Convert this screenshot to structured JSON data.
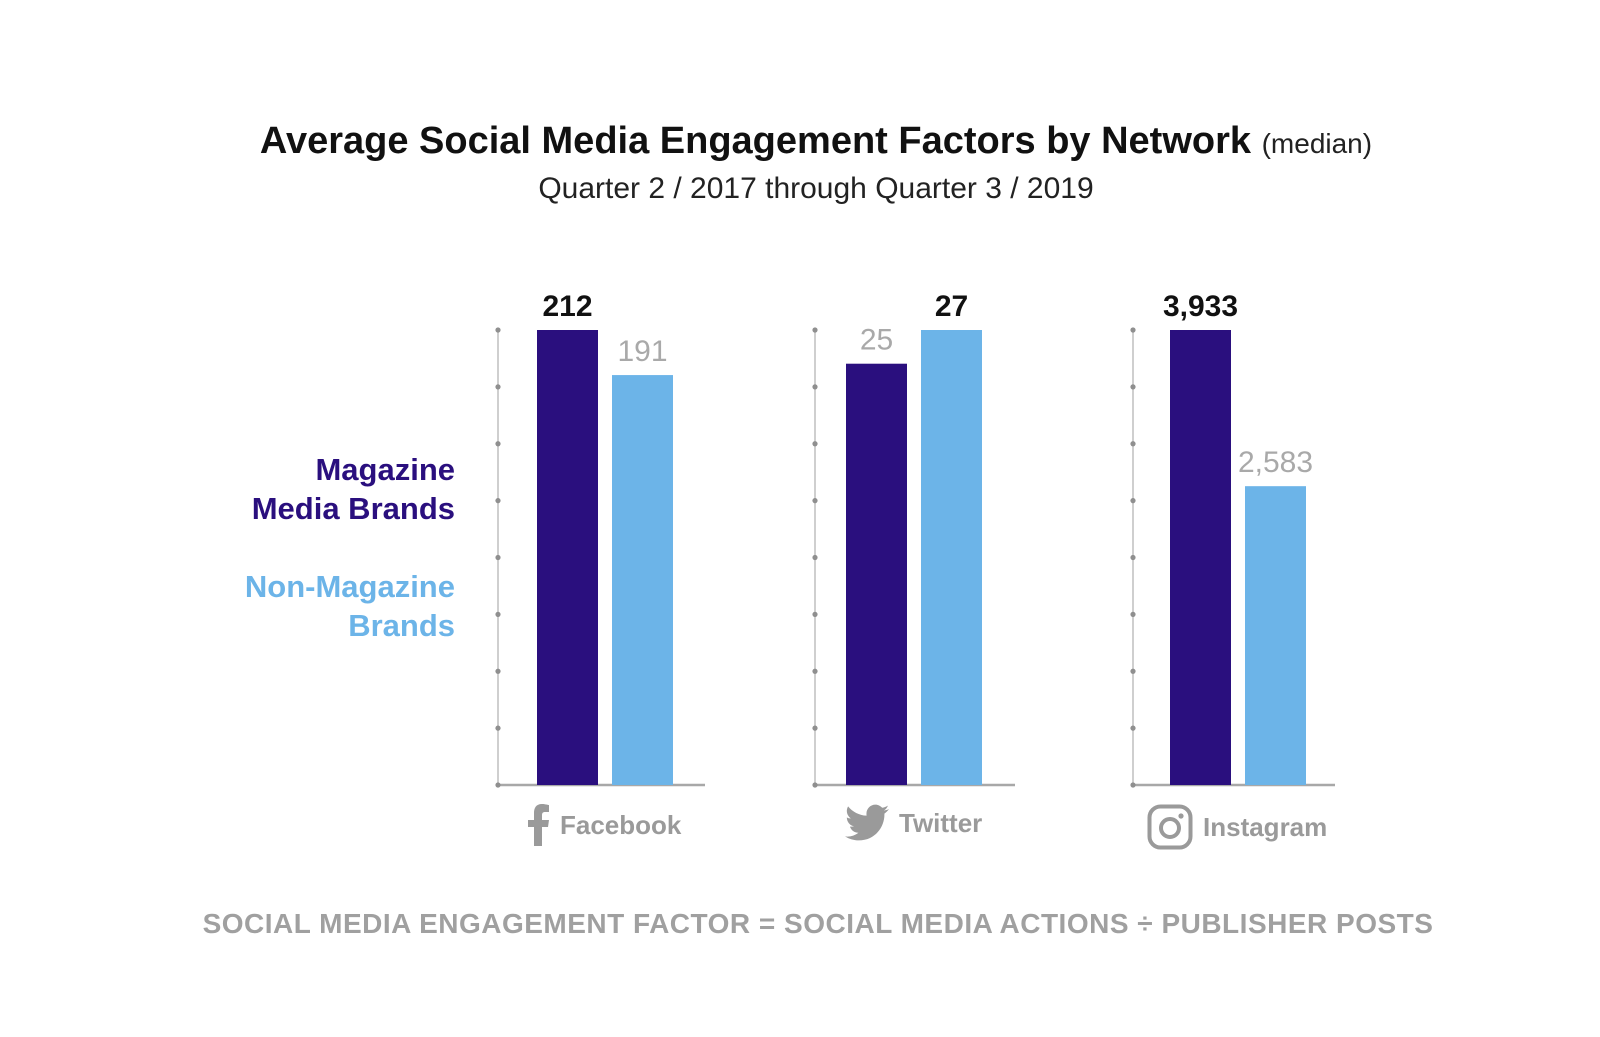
{
  "header": {
    "title": "Average Social Media Engagement Factors by Network",
    "title_suffix": "(median)",
    "subtitle": "Quarter 2 / 2017 through Quarter 3 / 2019"
  },
  "legend": {
    "magazine": {
      "line1": "Magazine",
      "line2": "Media Brands",
      "color": "#2a0f7e"
    },
    "non_magazine": {
      "line1": "Non-Magazine",
      "line2": "Brands",
      "color": "#6cb4e8"
    }
  },
  "footer": "SOCIAL MEDIA ENGAGEMENT FACTOR = SOCIAL MEDIA ACTIONS ÷ PUBLISHER POSTS",
  "networks": [
    {
      "name": "Facebook",
      "icon": "facebook-icon"
    },
    {
      "name": "Twitter",
      "icon": "twitter-icon"
    },
    {
      "name": "Instagram",
      "icon": "instagram-icon"
    }
  ],
  "chart_data": {
    "type": "bar",
    "title": "Average Social Media Engagement Factors by Network (median)",
    "subtitle": "Quarter 2 / 2017 through Quarter 3 / 2019",
    "categories": [
      "Facebook",
      "Twitter",
      "Instagram"
    ],
    "series": [
      {
        "name": "Magazine Media Brands",
        "color": "#2a0f7e",
        "values": [
          212,
          25,
          3933
        ],
        "labels": [
          "212",
          "25",
          "3,933"
        ]
      },
      {
        "name": "Non-Magazine Brands",
        "color": "#6cb4e8",
        "values": [
          191,
          27,
          2583
        ],
        "labels": [
          "191",
          "27",
          "2,583"
        ]
      }
    ],
    "scale": "independent per network (larger value fills axis)",
    "axis_ticks_per_panel": 9,
    "grid": false,
    "legend_position": "left",
    "xlabel": "",
    "ylabel": "",
    "note": "SOCIAL MEDIA ENGAGEMENT FACTOR = SOCIAL MEDIA ACTIONS ÷ PUBLISHER POSTS"
  }
}
